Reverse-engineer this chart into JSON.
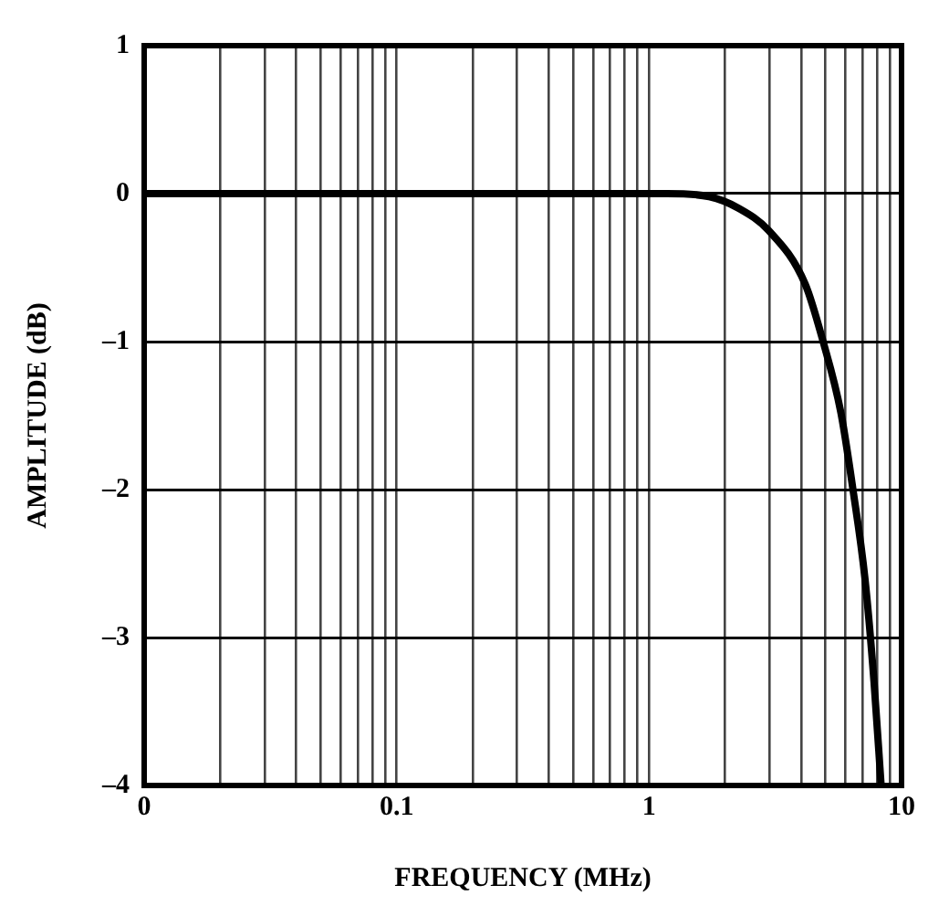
{
  "chart_data": {
    "type": "line",
    "xlabel": "FREQUENCY (MHz)",
    "ylabel": "AMPLITUDE (dB)",
    "log": "x",
    "grid": true,
    "marker": "none",
    "line_style": "solid",
    "xlim": [
      0.01,
      10
    ],
    "ylim": [
      -4,
      1
    ],
    "yticks": [
      {
        "value": -4,
        "label": "–4"
      },
      {
        "value": -3,
        "label": "–3"
      },
      {
        "value": -2,
        "label": "–2"
      },
      {
        "value": -1,
        "label": "–1"
      },
      0,
      1
    ],
    "xticks": [
      {
        "value": 0.01,
        "label": "0"
      },
      {
        "value": 0.02,
        "label": null
      },
      {
        "value": 0.03,
        "label": null
      },
      {
        "value": 0.04,
        "label": null
      },
      {
        "value": 0.05,
        "label": null
      },
      {
        "value": 0.06,
        "label": null
      },
      {
        "value": 0.07,
        "label": null
      },
      {
        "value": 0.08,
        "label": null
      },
      {
        "value": 0.09,
        "label": null
      },
      0.1,
      {
        "value": 0.2,
        "label": null
      },
      {
        "value": 0.3,
        "label": null
      },
      {
        "value": 0.4,
        "label": null
      },
      {
        "value": 0.5,
        "label": null
      },
      {
        "value": 0.6,
        "label": null
      },
      {
        "value": 0.7,
        "label": null
      },
      {
        "value": 0.8,
        "label": null
      },
      {
        "value": 0.9,
        "label": null
      },
      1,
      {
        "value": 2,
        "label": null
      },
      {
        "value": 3,
        "label": null
      },
      {
        "value": 4,
        "label": null
      },
      {
        "value": 5,
        "label": null
      },
      {
        "value": 6,
        "label": null
      },
      {
        "value": 7,
        "label": null
      },
      {
        "value": 8,
        "label": null
      },
      {
        "value": 9,
        "label": null
      },
      10
    ],
    "series": [
      {
        "color": "#000000",
        "x": [
          0.01,
          0.1,
          1,
          1.18,
          1.73,
          2.27,
          2.98,
          4.15,
          4.89,
          5.75,
          6.42,
          7.16,
          7.78,
          8.3
        ],
        "values": [
          0,
          0,
          0,
          0,
          -0.02,
          -0.1,
          -0.25,
          -0.61,
          -1.0,
          -1.48,
          -2.0,
          -2.6,
          -3.3,
          -4.0
        ]
      }
    ]
  }
}
